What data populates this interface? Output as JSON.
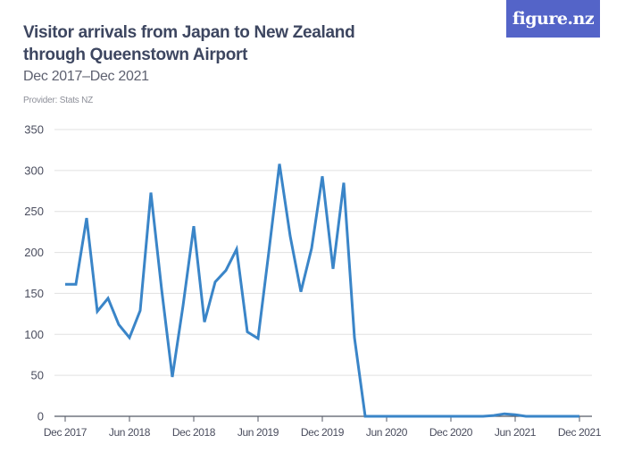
{
  "header": {
    "title": "Visitor arrivals from Japan to New Zealand through Queenstown Airport",
    "subtitle": "Dec 2017–Dec 2021",
    "provider": "Provider: Stats NZ",
    "logo": "figure.nz"
  },
  "colors": {
    "line": "#3a85c8",
    "logo_bg": "#5464c8",
    "title": "#3d4660",
    "grid": "#e0e0e0",
    "axis": "#555a66"
  },
  "chart_data": {
    "type": "line",
    "title": "Visitor arrivals from Japan to New Zealand through Queenstown Airport",
    "subtitle": "Dec 2017–Dec 2021",
    "xlabel": "",
    "ylabel": "",
    "ylim": [
      0,
      350
    ],
    "yticks": [
      0,
      50,
      100,
      150,
      200,
      250,
      300,
      350
    ],
    "xtick_labels": [
      "Dec 2017",
      "Jun 2018",
      "Dec 2018",
      "Jun 2019",
      "Dec 2019",
      "Jun 2020",
      "Dec 2020",
      "Jun 2021",
      "Dec 2021"
    ],
    "grid": true,
    "legend": "none",
    "x": [
      "Dec 2017",
      "Jan 2018",
      "Feb 2018",
      "Mar 2018",
      "Apr 2018",
      "May 2018",
      "Jun 2018",
      "Jul 2018",
      "Aug 2018",
      "Sep 2018",
      "Oct 2018",
      "Nov 2018",
      "Dec 2018",
      "Jan 2019",
      "Feb 2019",
      "Mar 2019",
      "Apr 2019",
      "May 2019",
      "Jun 2019",
      "Jul 2019",
      "Aug 2019",
      "Sep 2019",
      "Oct 2019",
      "Nov 2019",
      "Dec 2019",
      "Jan 2020",
      "Feb 2020",
      "Mar 2020",
      "Apr 2020",
      "May 2020",
      "Jun 2020",
      "Jul 2020",
      "Aug 2020",
      "Sep 2020",
      "Oct 2020",
      "Nov 2020",
      "Dec 2020",
      "Jan 2021",
      "Feb 2021",
      "Mar 2021",
      "Apr 2021",
      "May 2021",
      "Jun 2021",
      "Jul 2021",
      "Aug 2021",
      "Sep 2021",
      "Oct 2021",
      "Nov 2021",
      "Dec 2021"
    ],
    "series": [
      {
        "name": "Visitor arrivals",
        "values": [
          161,
          161,
          242,
          128,
          144,
          112,
          96,
          129,
          273,
          155,
          48,
          135,
          232,
          115,
          164,
          178,
          204,
          103,
          95,
          200,
          308,
          220,
          152,
          205,
          293,
          180,
          285,
          96,
          0,
          0,
          0,
          0,
          0,
          0,
          0,
          0,
          0,
          0,
          0,
          0,
          1,
          3,
          2,
          0,
          0,
          0,
          0,
          0,
          0
        ]
      }
    ]
  }
}
